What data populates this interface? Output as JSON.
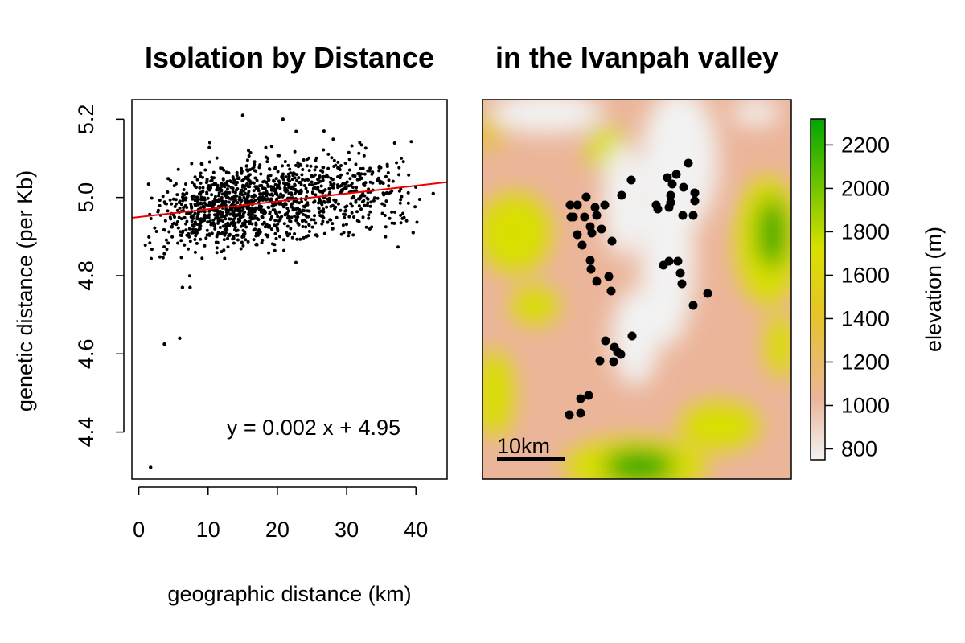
{
  "titles": {
    "left": "Isolation by Distance",
    "right": "in the Ivanpah valley"
  },
  "chart_data": [
    {
      "type": "scatter",
      "xlabel": "geographic distance (km)",
      "ylabel": "genetic distance (per Kb)",
      "xlim": [
        -1,
        44.5
      ],
      "ylim": [
        4.28,
        5.25
      ],
      "x_ticks": [
        "0",
        "10",
        "20",
        "30",
        "40"
      ],
      "y_ticks": [
        "4.4",
        "4.6",
        "4.8",
        "5.0",
        "5.2"
      ],
      "point_color": "#000000",
      "regression": {
        "slope": 0.002,
        "intercept": 4.95,
        "color": "#ee0000",
        "label": "y = 0.002 x + 4.95"
      },
      "outliers": [
        {
          "x": 1.7,
          "y": 4.31
        },
        {
          "x": 3.7,
          "y": 4.625
        },
        {
          "x": 5.9,
          "y": 4.64
        },
        {
          "x": 6.3,
          "y": 4.77
        },
        {
          "x": 7.4,
          "y": 4.77
        },
        {
          "x": 15.0,
          "y": 5.21
        },
        {
          "x": 20.8,
          "y": 5.2
        },
        {
          "x": 39.6,
          "y": 4.91
        },
        {
          "x": 42.5,
          "y": 5.01
        }
      ],
      "bulk_points": {
        "count": 1350,
        "x_range": [
          0.5,
          41
        ],
        "x_mode": 14,
        "y_model": "4.95 + 0.002 x",
        "y_spread": 0.055
      }
    },
    {
      "type": "heatmap",
      "legend_title": "elevation (m)",
      "legend_ticks": [
        "800",
        "1000",
        "1200",
        "1400",
        "1600",
        "1800",
        "2000",
        "2200"
      ],
      "legend_range": [
        750,
        2320
      ],
      "colors": {
        "low": "#f2f2f2",
        "mid_low": "#ebb59a",
        "mid": "#e6c32a",
        "mid_high": "#d9e000",
        "high": "#00a600"
      },
      "scale_bar_label": "10km",
      "sample_sites": [
        [
          709,
          255
        ],
        [
          710,
          270
        ],
        [
          713,
          270
        ],
        [
          718,
          292
        ],
        [
          724,
          305
        ],
        [
          729,
          245
        ],
        [
          727,
          270
        ],
        [
          734,
          282
        ],
        [
          736,
          290
        ],
        [
          742,
          268
        ],
        [
          740,
          258
        ],
        [
          752,
          255
        ],
        [
          748,
          285
        ],
        [
          761,
          300
        ],
        [
          734,
          324
        ],
        [
          735,
          335
        ],
        [
          742,
          350
        ],
        [
          757,
          344
        ],
        [
          760,
          362
        ],
        [
          773,
          243
        ],
        [
          785,
          224
        ],
        [
          830,
          221
        ],
        [
          841,
          217
        ],
        [
          836,
          229
        ],
        [
          834,
          243
        ],
        [
          834,
          252
        ],
        [
          850,
          233
        ],
        [
          856,
          203
        ],
        [
          816,
          255
        ],
        [
          818,
          260
        ],
        [
          832,
          258
        ],
        [
          864,
          240
        ],
        [
          864,
          250
        ],
        [
          849,
          268
        ],
        [
          862,
          268
        ],
        [
          825,
          330
        ],
        [
          832,
          325
        ],
        [
          843,
          325
        ],
        [
          846,
          340
        ],
        [
          848,
          353
        ],
        [
          862,
          380
        ],
        [
          880,
          365
        ],
        [
          753,
          424
        ],
        [
          764,
          432
        ],
        [
          768,
          438
        ],
        [
          786,
          418
        ],
        [
          763,
          450
        ],
        [
          772,
          441
        ],
        [
          746,
          449
        ],
        [
          722,
          496
        ],
        [
          732,
          492
        ],
        [
          708,
          516
        ],
        [
          722,
          514
        ],
        [
          718,
          255
        ]
      ]
    }
  ]
}
